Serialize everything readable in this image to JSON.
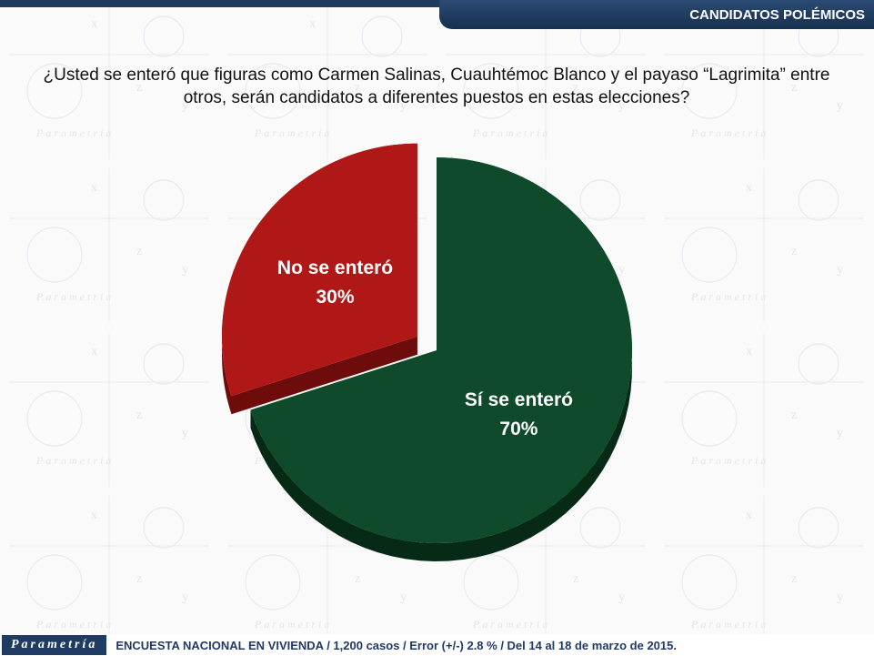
{
  "header": {
    "section_title": "CANDIDATOS POLÉMICOS"
  },
  "question": "¿Usted se enteró que figuras como Carmen Salinas, Cuauhtémoc Blanco y el payaso “Lagrimita” entre otros, serán candidatos a diferentes puestos en estas elecciones?",
  "chart_data": {
    "type": "pie",
    "slices": [
      {
        "label": "Sí se enteró",
        "value": 70,
        "value_label": "70%",
        "color": "#0f4a2a",
        "side_color": "#062a16"
      },
      {
        "label": "No se enteró",
        "value": 30,
        "value_label": "30%",
        "color": "#b01818",
        "side_color": "#6e0c0c"
      }
    ],
    "style": "3d-exploded",
    "legend": "none"
  },
  "footer": {
    "logo": "Parametría",
    "note": "ENCUESTA NACIONAL EN VIVIENDA / 1,200 casos / Error (+/-) 2.8 % / Del 14 al 18 de marzo de 2015."
  },
  "colors": {
    "brand": "#1f3a63",
    "background": "#fafafa"
  }
}
